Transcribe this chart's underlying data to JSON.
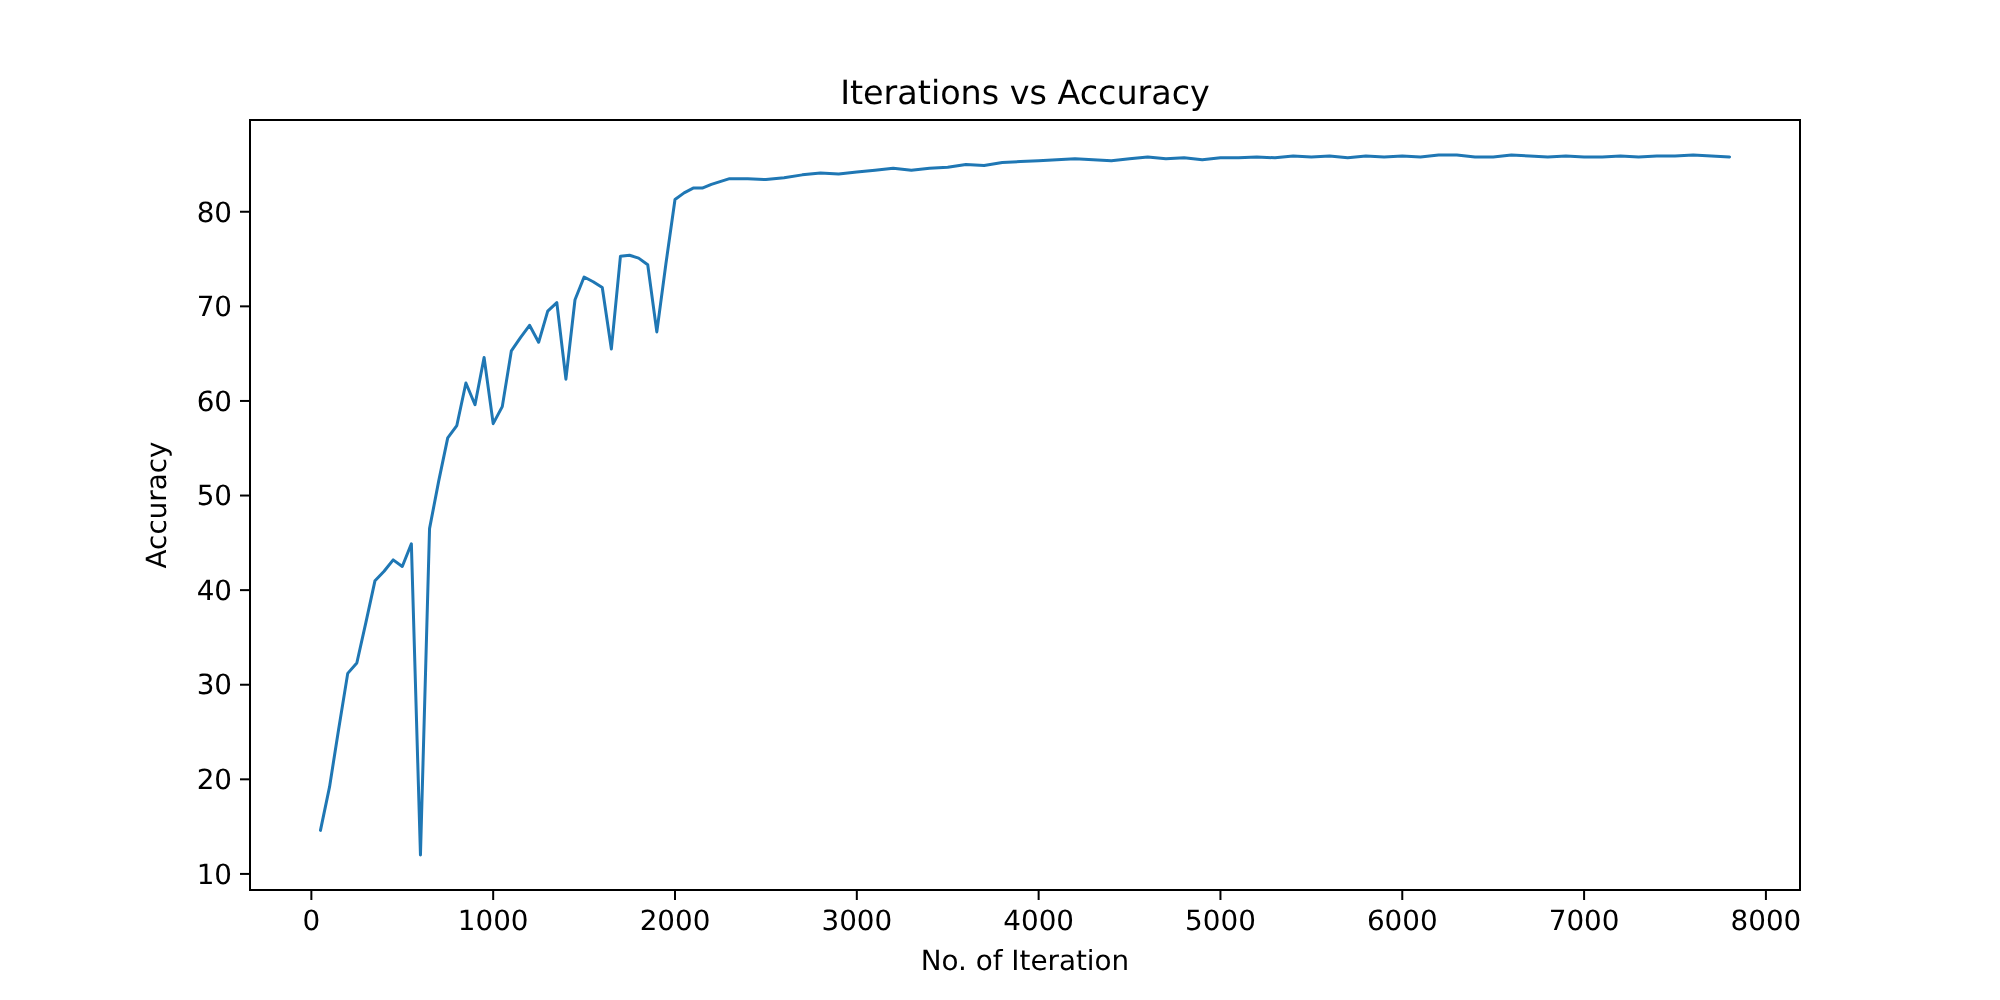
{
  "chart_data": {
    "type": "line",
    "title": "Iterations vs Accuracy",
    "xlabel": "No. of Iteration",
    "ylabel": "Accuracy",
    "x": [
      50,
      100,
      150,
      200,
      250,
      300,
      350,
      400,
      450,
      500,
      550,
      600,
      650,
      700,
      750,
      800,
      850,
      900,
      950,
      1000,
      1050,
      1100,
      1150,
      1200,
      1250,
      1300,
      1350,
      1400,
      1450,
      1500,
      1550,
      1600,
      1650,
      1700,
      1750,
      1800,
      1850,
      1900,
      1950,
      2000,
      2050,
      2100,
      2150,
      2200,
      2300,
      2400,
      2500,
      2600,
      2700,
      2800,
      2900,
      3000,
      3100,
      3200,
      3300,
      3400,
      3500,
      3600,
      3700,
      3800,
      3900,
      4000,
      4100,
      4200,
      4300,
      4400,
      4500,
      4600,
      4700,
      4800,
      4900,
      5000,
      5100,
      5200,
      5300,
      5400,
      5500,
      5600,
      5700,
      5800,
      5900,
      6000,
      6100,
      6200,
      6300,
      6400,
      6500,
      6600,
      6700,
      6800,
      6900,
      7000,
      7100,
      7200,
      7300,
      7400,
      7500,
      7600,
      7700,
      7800
    ],
    "series": [
      {
        "color": "#1f77b4",
        "values": [
          14.6,
          19.2,
          25.3,
          31.2,
          32.3,
          36.6,
          41.0,
          42.0,
          43.2,
          42.5,
          44.9,
          12.0,
          46.5,
          51.5,
          56.1,
          57.4,
          61.9,
          59.6,
          64.6,
          57.6,
          59.4,
          65.3,
          66.7,
          68.0,
          66.2,
          69.5,
          70.4,
          62.3,
          70.7,
          73.1,
          72.6,
          72.0,
          65.5,
          75.3,
          75.4,
          75.1,
          74.4,
          67.3,
          74.5,
          81.3,
          82.0,
          82.5,
          82.5,
          82.9,
          83.5,
          83.5,
          83.4,
          83.6,
          83.9,
          84.1,
          84.0,
          84.2,
          84.4,
          84.6,
          84.4,
          84.6,
          84.7,
          85.0,
          84.9,
          85.2,
          85.3,
          85.4,
          85.5,
          85.6,
          85.5,
          85.4,
          85.6,
          85.8,
          85.6,
          85.7,
          85.5,
          85.7,
          85.7,
          85.8,
          85.7,
          85.9,
          85.8,
          85.9,
          85.7,
          85.9,
          85.8,
          85.9,
          85.8,
          86.0,
          86.0,
          85.8,
          85.8,
          86.0,
          85.9,
          85.8,
          85.9,
          85.8,
          85.8,
          85.9,
          85.8,
          85.9,
          85.9,
          86.0,
          85.9,
          85.8
        ]
      }
    ],
    "xlim": [
      -337.5,
      8187.5
    ],
    "ylim": [
      8.3,
      89.7
    ],
    "xticks": [
      0,
      1000,
      2000,
      3000,
      4000,
      5000,
      6000,
      7000,
      8000
    ],
    "yticks": [
      10,
      20,
      30,
      40,
      50,
      60,
      70,
      80
    ],
    "line_style": "solid"
  }
}
